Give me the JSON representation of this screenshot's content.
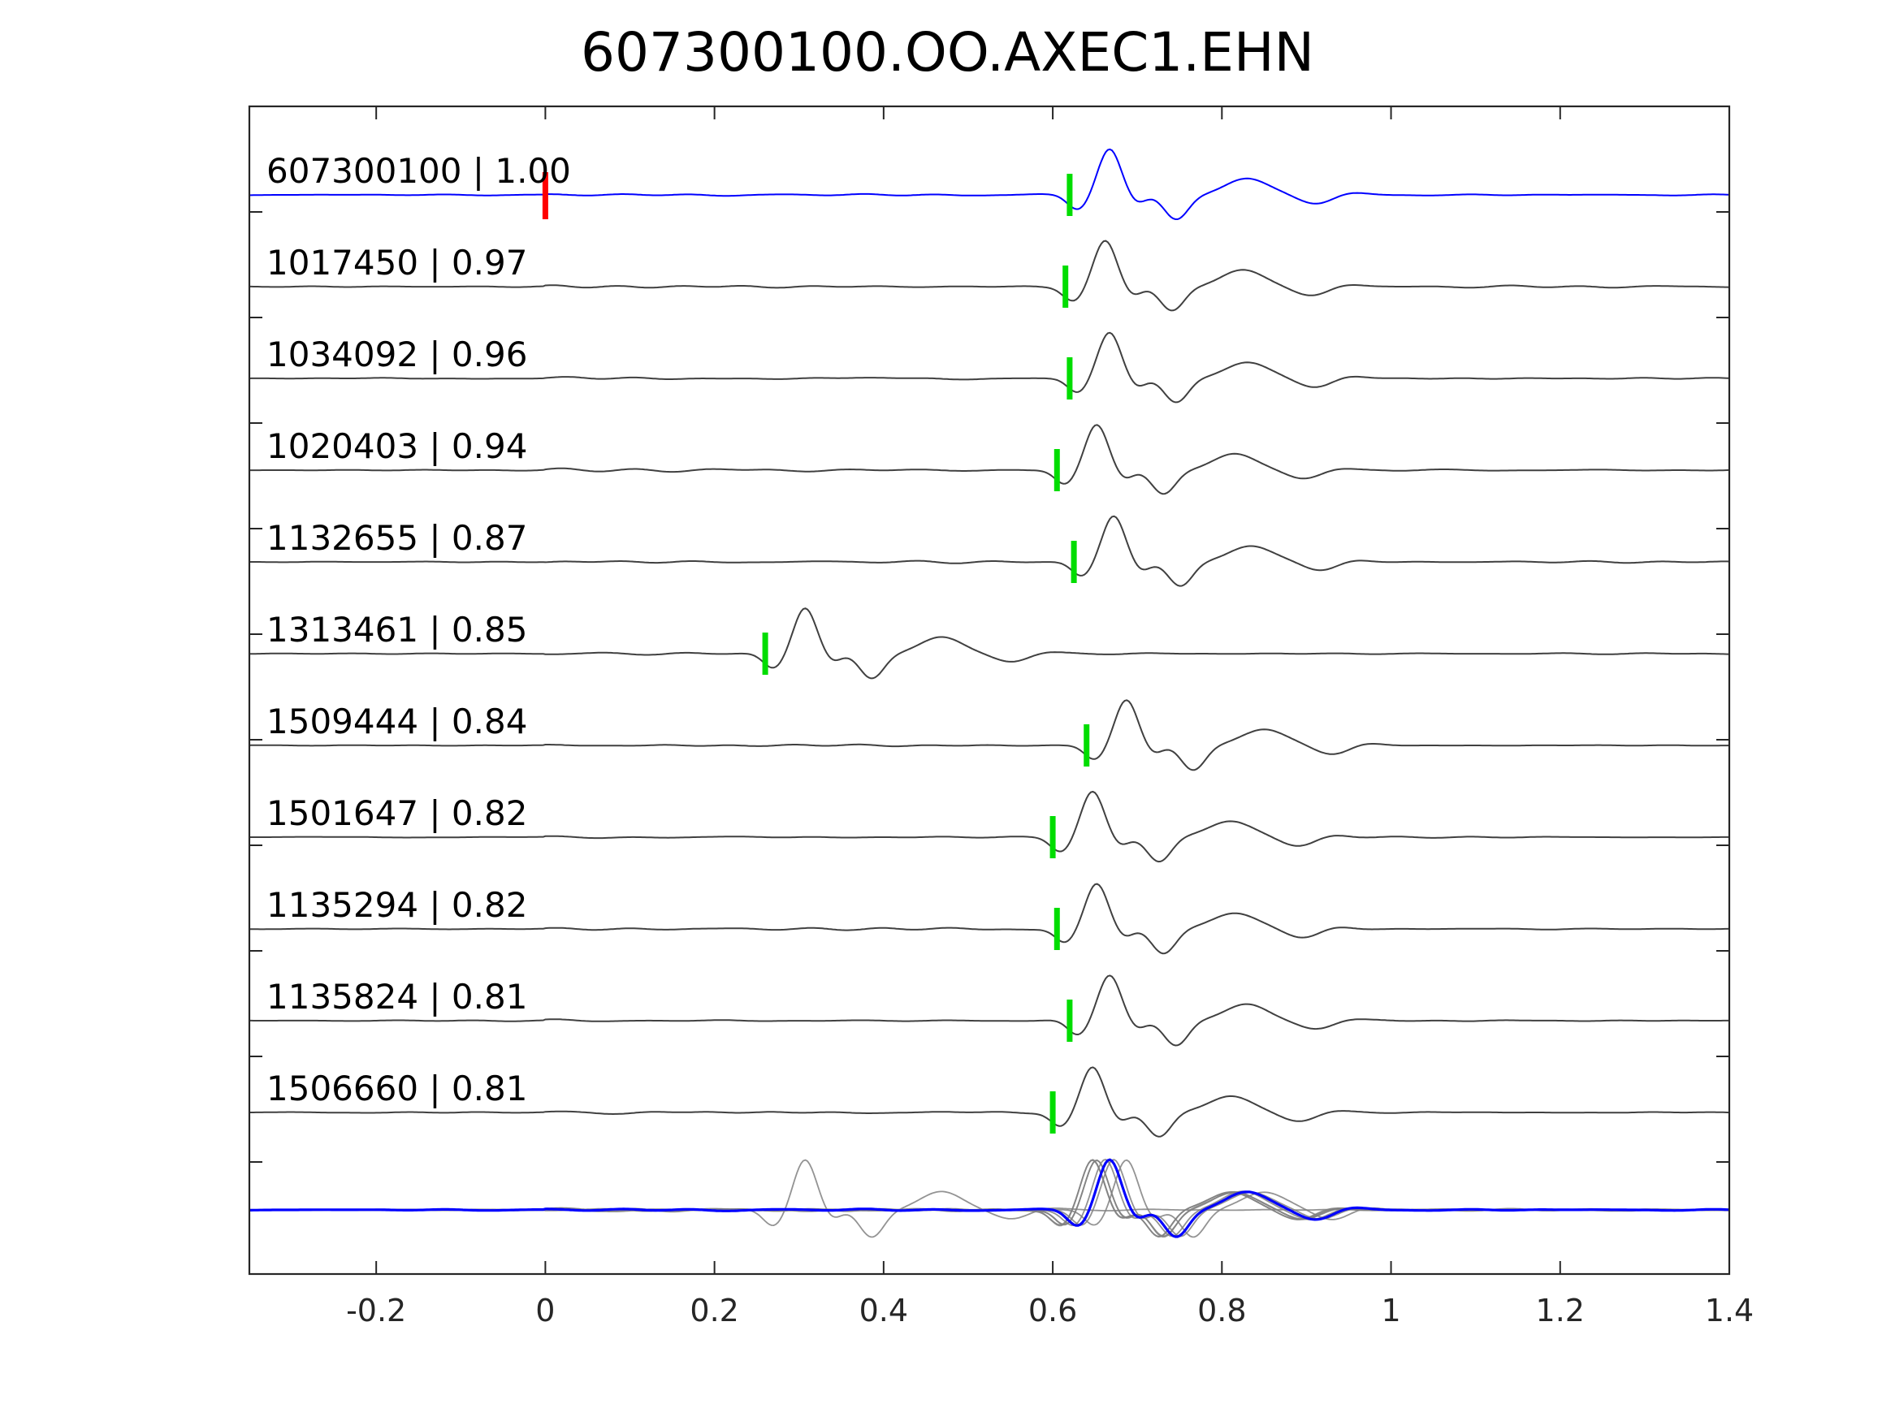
{
  "chart_data": {
    "type": "line",
    "title": "607300100.OO.AXEC1.EHN",
    "xlabel": "",
    "ylabel": "",
    "xlim": [
      -0.35,
      1.4
    ],
    "x_ticks": [
      -0.2,
      0,
      0.2,
      0.4,
      0.6,
      0.8,
      1,
      1.2,
      1.4
    ],
    "x_tick_labels": [
      "-0.2",
      "0",
      "0.2",
      "0.4",
      "0.6",
      "0.8",
      "1",
      "1.2",
      "1.4"
    ],
    "grid": false,
    "colors": {
      "template": "#0000ff",
      "trace": "#404040",
      "stack": "#808080",
      "reference_pick": "#ff0000",
      "pick": "#00dd00"
    },
    "reference_pick_time": 0.0,
    "series": [
      {
        "label": "607300100 | 1.00",
        "pick": 0.62,
        "kind": "template"
      },
      {
        "label": "1017450 | 0.97",
        "pick": 0.615,
        "kind": "trace"
      },
      {
        "label": "1034092 | 0.96",
        "pick": 0.62,
        "kind": "trace"
      },
      {
        "label": "1020403 | 0.94",
        "pick": 0.605,
        "kind": "trace"
      },
      {
        "label": "1132655 | 0.87",
        "pick": 0.625,
        "kind": "trace"
      },
      {
        "label": "1313461 | 0.85",
        "pick": 0.26,
        "kind": "trace"
      },
      {
        "label": "1509444 | 0.84",
        "pick": 0.64,
        "kind": "trace"
      },
      {
        "label": "1501647 | 0.82",
        "pick": 0.6,
        "kind": "trace"
      },
      {
        "label": "1135294 | 0.82",
        "pick": 0.605,
        "kind": "trace"
      },
      {
        "label": "1135824 | 0.81",
        "pick": 0.62,
        "kind": "trace"
      },
      {
        "label": "1506660 | 0.81",
        "pick": 0.6,
        "kind": "trace"
      }
    ]
  }
}
